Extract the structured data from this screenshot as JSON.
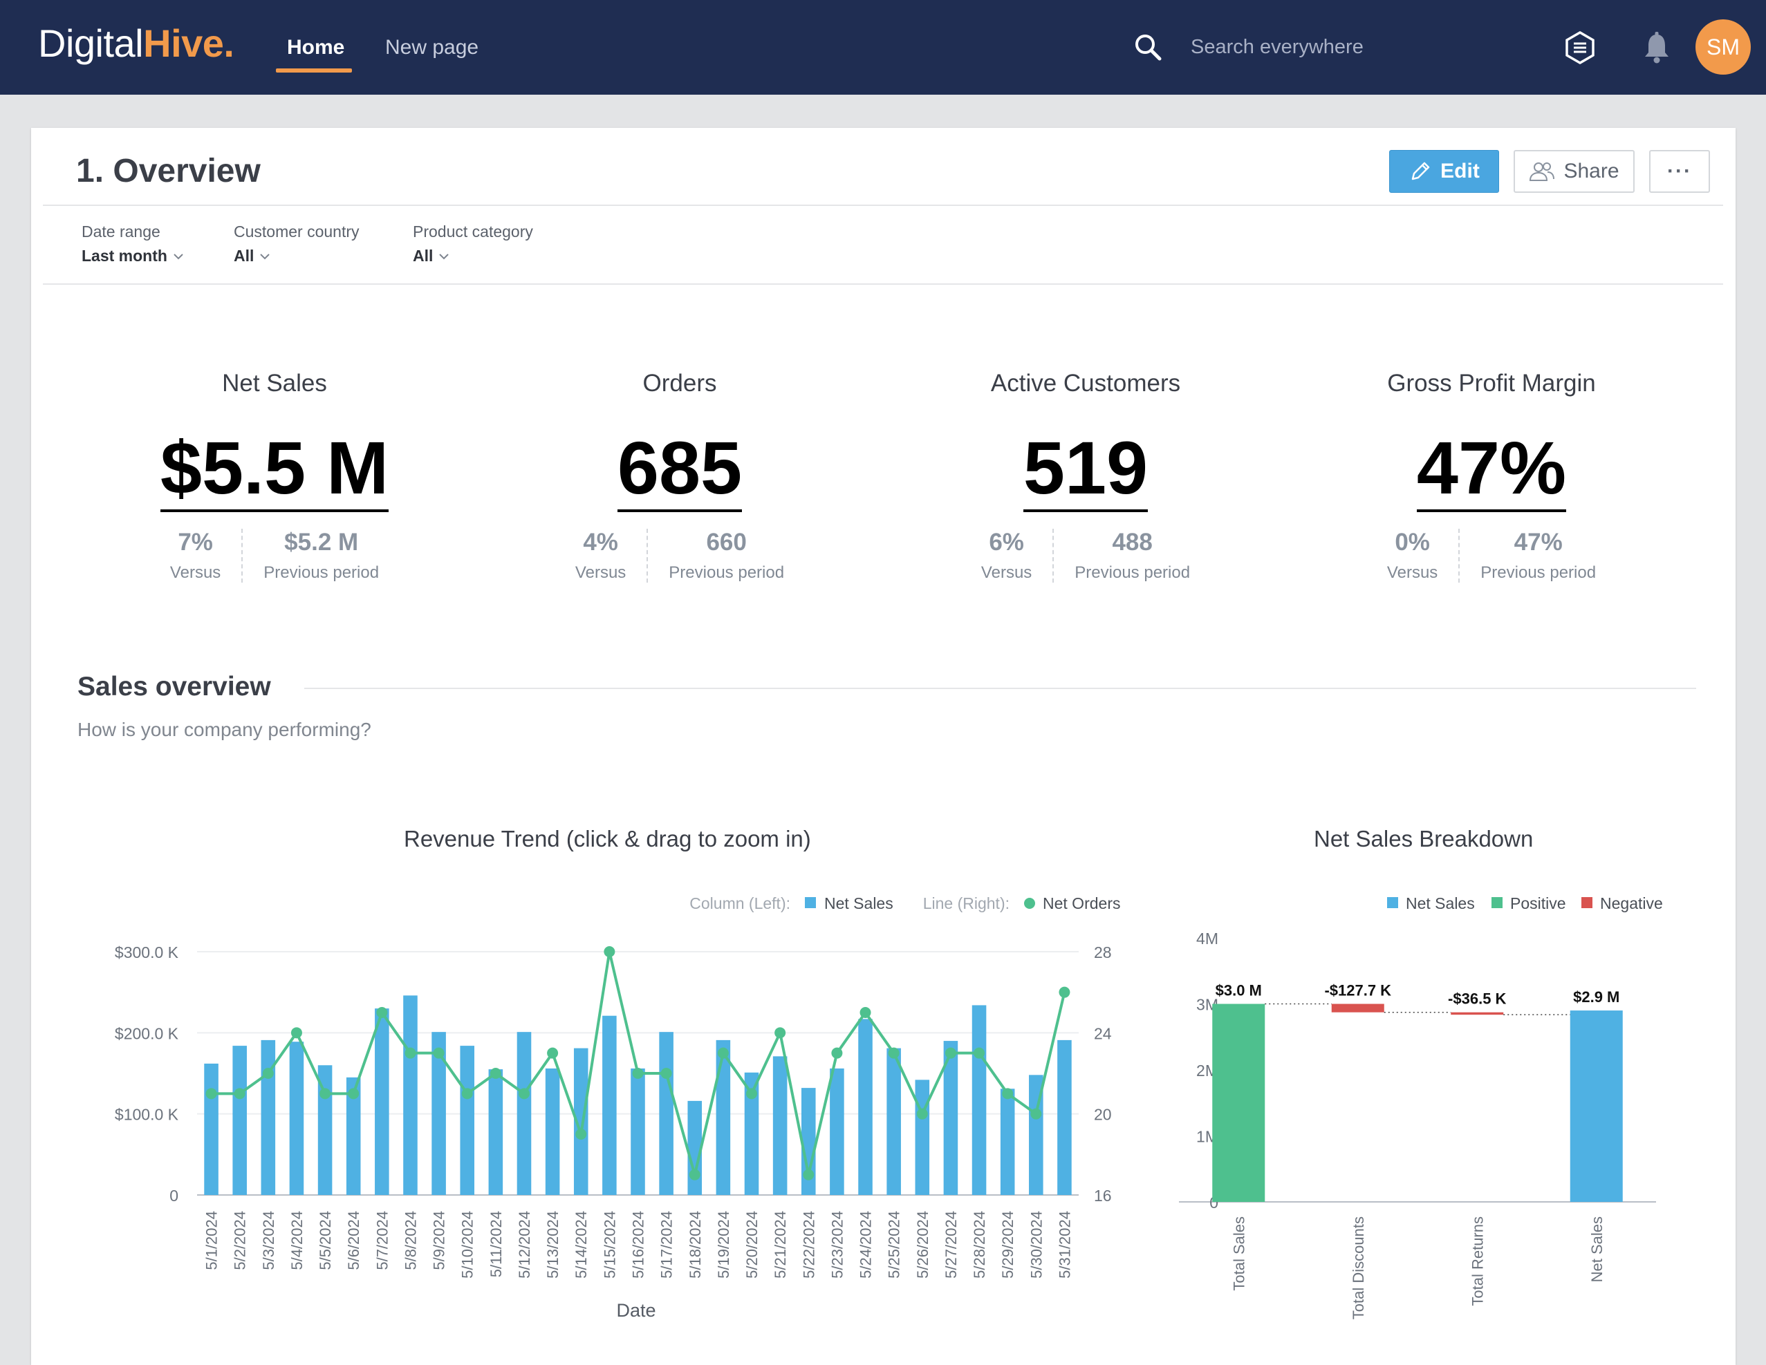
{
  "nav": {
    "logo_part1": "Digital",
    "logo_part2": "Hive.",
    "tabs": [
      {
        "label": "Home"
      },
      {
        "label": "New page"
      }
    ],
    "search_placeholder": "Search everywhere",
    "avatar_initials": "SM"
  },
  "page": {
    "title": "1. Overview",
    "edit_label": "Edit",
    "share_label": "Share",
    "more_label": "···"
  },
  "filters": [
    {
      "label": "Date range",
      "value": "Last month"
    },
    {
      "label": "Customer country",
      "value": "All"
    },
    {
      "label": "Product category",
      "value": "All"
    }
  ],
  "kpis": [
    {
      "title": "Net Sales",
      "value": "$5.5 M",
      "versus_value": "7%",
      "versus_label": "Versus",
      "prev_value": "$5.2 M",
      "prev_label": "Previous period"
    },
    {
      "title": "Orders",
      "value": "685",
      "versus_value": "4%",
      "versus_label": "Versus",
      "prev_value": "660",
      "prev_label": "Previous period"
    },
    {
      "title": "Active Customers",
      "value": "519",
      "versus_value": "6%",
      "versus_label": "Versus",
      "prev_value": "488",
      "prev_label": "Previous period"
    },
    {
      "title": "Gross Profit Margin",
      "value": "47%",
      "versus_value": "0%",
      "versus_label": "Versus",
      "prev_value": "47%",
      "prev_label": "Previous period"
    }
  ],
  "section": {
    "title": "Sales overview",
    "subtitle": "How is your company performing?"
  },
  "colors": {
    "navbar": "#1f2d52",
    "accent": "#f29a4b",
    "bar_blue": "#4fb1e3",
    "line_green": "#4ec08e",
    "negative_red": "#d9534f"
  },
  "chart_data": [
    {
      "type": "bar",
      "title": "Revenue Trend (click & drag to zoom in)",
      "xlabel": "Date",
      "legend": {
        "column_prefix": "Column (Left):",
        "line_prefix": "Line (Right):",
        "placement": "top-right"
      },
      "categories": [
        "5/1/2024",
        "5/2/2024",
        "5/3/2024",
        "5/4/2024",
        "5/5/2024",
        "5/6/2024",
        "5/7/2024",
        "5/8/2024",
        "5/9/2024",
        "5/10/2024",
        "5/11/2024",
        "5/12/2024",
        "5/13/2024",
        "5/14/2024",
        "5/15/2024",
        "5/16/2024",
        "5/17/2024",
        "5/18/2024",
        "5/19/2024",
        "5/20/2024",
        "5/21/2024",
        "5/22/2024",
        "5/23/2024",
        "5/24/2024",
        "5/25/2024",
        "5/26/2024",
        "5/27/2024",
        "5/28/2024",
        "5/29/2024",
        "5/30/2024",
        "5/31/2024"
      ],
      "series": [
        {
          "name": "Net Sales",
          "axis": "left",
          "kind": "column",
          "values": [
            162000,
            184000,
            191000,
            189000,
            160000,
            145000,
            230000,
            246000,
            201000,
            184000,
            155000,
            201000,
            156000,
            181000,
            221000,
            156000,
            201000,
            116000,
            191000,
            151000,
            171000,
            132000,
            156000,
            217000,
            181000,
            142000,
            190000,
            234000,
            131000,
            148000,
            191000
          ]
        },
        {
          "name": "Net Orders",
          "axis": "right",
          "kind": "line",
          "values": [
            21,
            21,
            22,
            24,
            21,
            21,
            25,
            23,
            23,
            21,
            22,
            21,
            23,
            19,
            28,
            22,
            22,
            17,
            23,
            21,
            24,
            17,
            23,
            25,
            23,
            20,
            23,
            23,
            21,
            20,
            26
          ]
        }
      ],
      "y_left": {
        "min": 0,
        "max": 300000,
        "ticks": [
          "0",
          "$100.0 K",
          "$200.0 K",
          "$300.0 K"
        ]
      },
      "y_right": {
        "min": 16,
        "max": 28,
        "ticks": [
          "16",
          "20",
          "24",
          "28"
        ]
      },
      "grid": true
    },
    {
      "type": "bar",
      "subtype": "waterfall",
      "title": "Net Sales Breakdown",
      "legend": [
        "Net Sales",
        "Positive",
        "Negative"
      ],
      "categories": [
        "Total Sales",
        "Total Discounts",
        "Total Returns",
        "Net Sales"
      ],
      "values": [
        3000000,
        -127700,
        -36500,
        2900000
      ],
      "labels": [
        "$3.0 M",
        "-$127.7 K",
        "-$36.5 K",
        "$2.9 M"
      ],
      "kinds": [
        "positive",
        "negative",
        "negative",
        "total"
      ],
      "y_ticks": [
        "0",
        "1M",
        "2M",
        "3M",
        "4M"
      ],
      "ylim": [
        0,
        4000000
      ]
    }
  ]
}
